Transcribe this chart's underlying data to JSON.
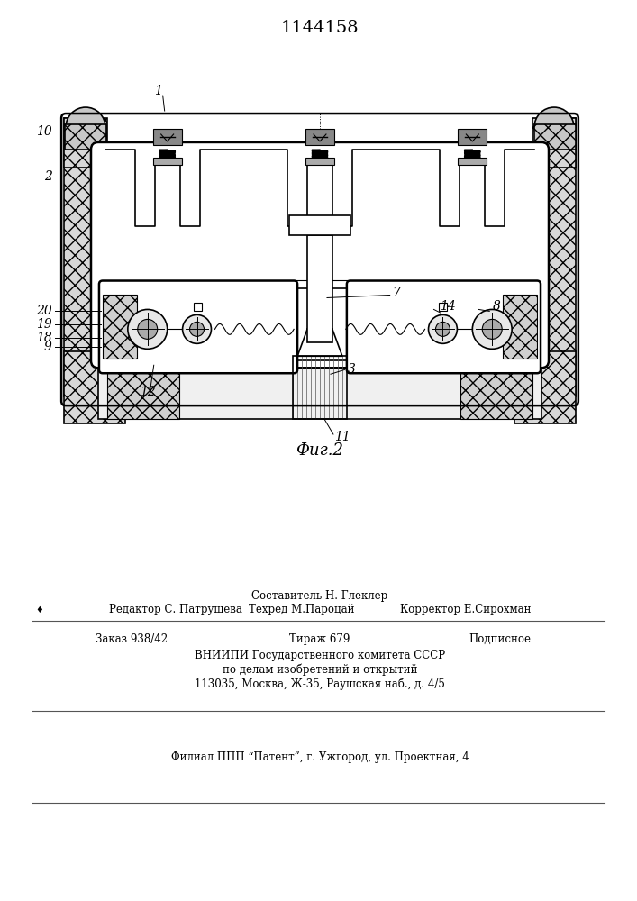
{
  "title": "1144158",
  "fig_label": "Фиг.2",
  "bg_color": "#ffffff",
  "line_color": "#000000",
  "footer_sestavitel": "Составитель Н. Глеклер",
  "footer_redaktor": "Редактор С. Патрушева",
  "footer_tehred": "Техред М.Пароцай",
  "footer_korrektor": "Корректор Е.Сирохман",
  "footer_zakaz": "Заказ 938/42",
  "footer_tirazh": "Тираж 679",
  "footer_podpisnoe": "Подписное",
  "footer_vniip1": "ВНИИПИ Государственного комитета СССР",
  "footer_vniip2": "по делам изобретений и открытий",
  "footer_vniip3": "113035, Москва, Ж-35, Раушская наб., д. 4/5",
  "footer_filial": "Филиал ППП “Патент”, г. Ужгород, ул. Проектная, 4"
}
